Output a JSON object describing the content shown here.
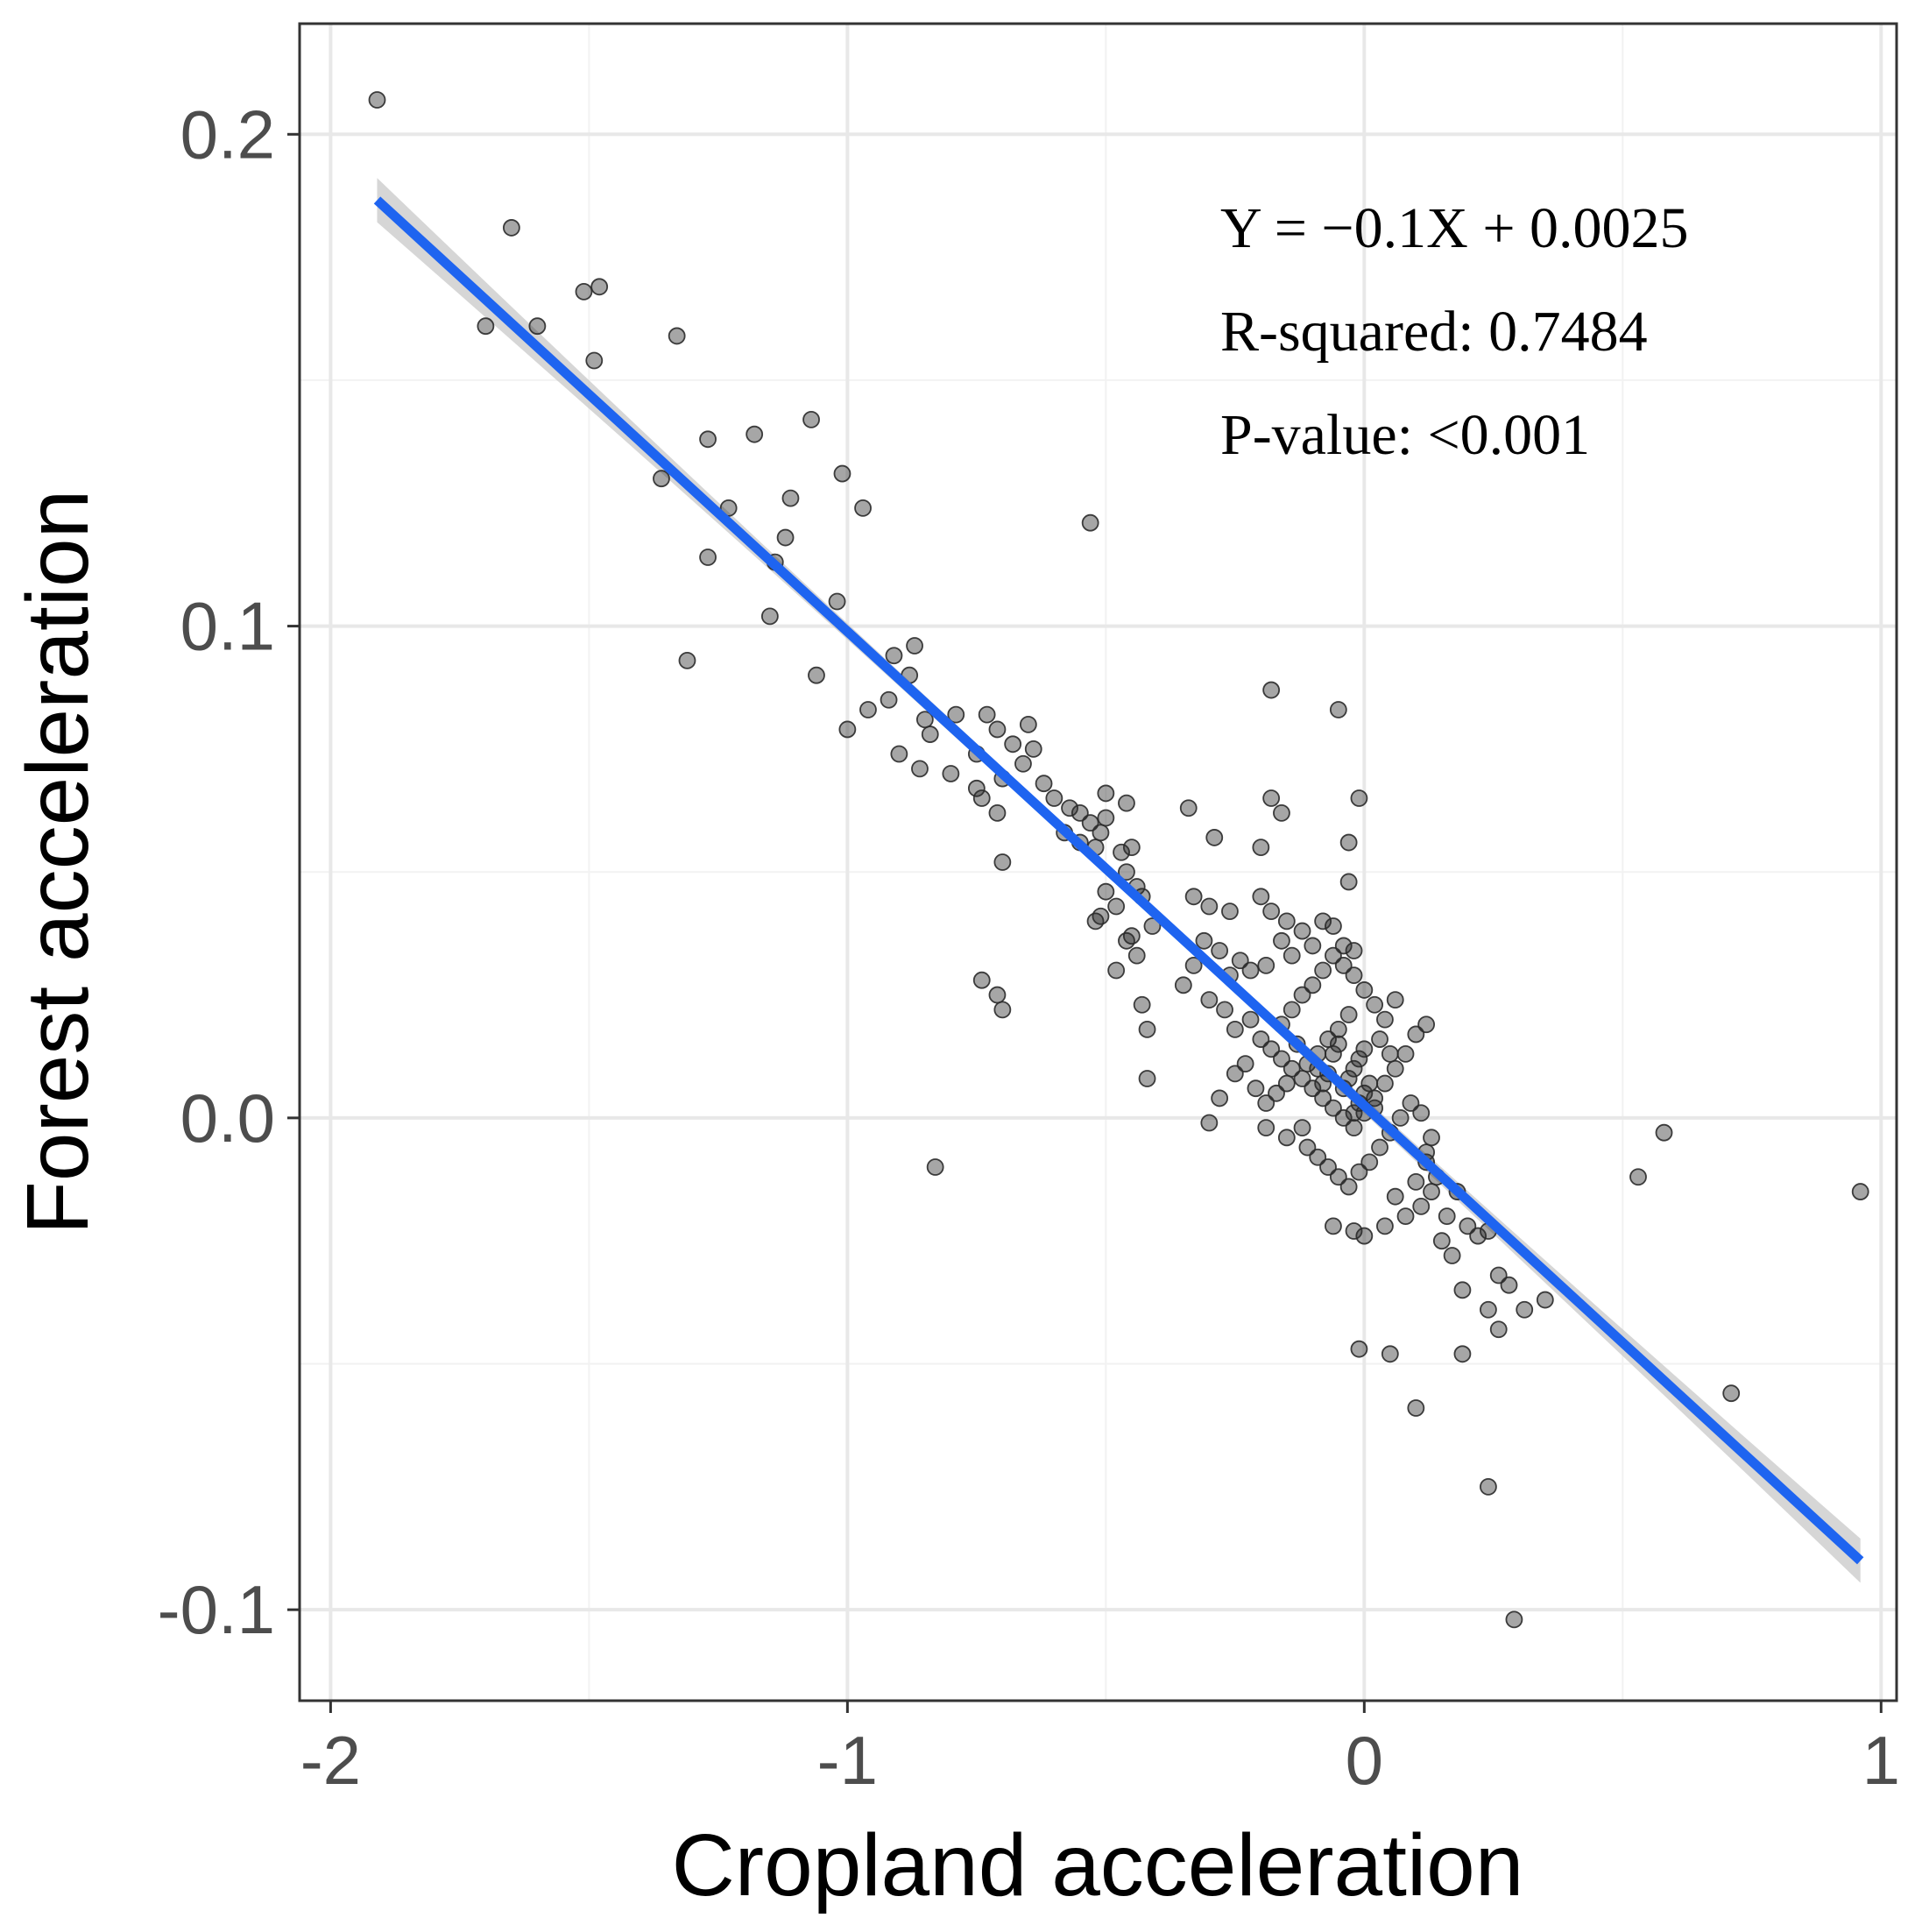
{
  "chart_data": {
    "type": "scatter",
    "title": "",
    "xlabel": "Cropland acceleration",
    "ylabel": "Forest acceleration",
    "xlim": [
      -2.06,
      1.03
    ],
    "ylim": [
      -0.1185,
      0.2225
    ],
    "x_ticks": [
      -2,
      -1,
      0,
      1
    ],
    "x_tick_labels": [
      "-2",
      "-1",
      "0",
      "1"
    ],
    "y_ticks": [
      -0.1,
      0.0,
      0.1,
      0.2
    ],
    "y_tick_labels": [
      "-0.1",
      "0.0",
      "0.1",
      "0.2"
    ],
    "grid": true,
    "fit": {
      "method": "linear",
      "slope": -0.0964,
      "intercept": 0.0025,
      "x_range": [
        -1.91,
        0.96
      ],
      "se_half_width_at_ends": 0.0045,
      "se_half_width_at_center": 0.0012,
      "color": "#1e64f0",
      "band_color": "#c8c8c8"
    },
    "annotations": [
      "Y = −0.1X + 0.0025",
      "R-squared: 0.7484",
      "P-value: <0.001"
    ],
    "point_color": "#2a2a2a",
    "points": [
      [
        -1.91,
        0.207
      ],
      [
        -1.65,
        0.181
      ],
      [
        -1.7,
        0.161
      ],
      [
        -1.6,
        0.161
      ],
      [
        -1.51,
        0.168
      ],
      [
        -1.48,
        0.169
      ],
      [
        -1.49,
        0.154
      ],
      [
        -1.33,
        0.159
      ],
      [
        -1.27,
        0.138
      ],
      [
        -1.18,
        0.139
      ],
      [
        -1.07,
        0.142
      ],
      [
        -1.01,
        0.131
      ],
      [
        -1.36,
        0.13
      ],
      [
        -1.23,
        0.124
      ],
      [
        -1.11,
        0.126
      ],
      [
        -0.97,
        0.124
      ],
      [
        -1.27,
        0.114
      ],
      [
        -1.12,
        0.118
      ],
      [
        -1.14,
        0.113
      ],
      [
        -1.15,
        0.102
      ],
      [
        -1.02,
        0.105
      ],
      [
        -1.31,
        0.093
      ],
      [
        -1.06,
        0.09
      ],
      [
        -0.53,
        0.121
      ],
      [
        -0.87,
        0.096
      ],
      [
        -0.91,
        0.094
      ],
      [
        -0.88,
        0.09
      ],
      [
        -0.92,
        0.085
      ],
      [
        -0.96,
        0.083
      ],
      [
        -1.0,
        0.079
      ],
      [
        -0.85,
        0.081
      ],
      [
        -0.84,
        0.078
      ],
      [
        -0.79,
        0.082
      ],
      [
        -0.9,
        0.074
      ],
      [
        -0.86,
        0.071
      ],
      [
        -0.8,
        0.07
      ],
      [
        -0.75,
        0.074
      ],
      [
        -0.73,
        0.082
      ],
      [
        -0.71,
        0.079
      ],
      [
        -0.68,
        0.076
      ],
      [
        -0.65,
        0.08
      ],
      [
        -0.7,
        0.069
      ],
      [
        -0.64,
        0.075
      ],
      [
        -0.66,
        0.072
      ],
      [
        -0.62,
        0.068
      ],
      [
        -0.6,
        0.065
      ],
      [
        -0.57,
        0.063
      ],
      [
        -0.55,
        0.062
      ],
      [
        -0.5,
        0.066
      ],
      [
        -0.53,
        0.06
      ],
      [
        -0.58,
        0.058
      ],
      [
        -0.55,
        0.056
      ],
      [
        -0.51,
        0.058
      ],
      [
        -0.46,
        0.064
      ],
      [
        -0.52,
        0.055
      ],
      [
        -0.5,
        0.061
      ],
      [
        -0.74,
        0.065
      ],
      [
        -0.75,
        0.067
      ],
      [
        -0.71,
        0.062
      ],
      [
        -0.7,
        0.052
      ],
      [
        -0.74,
        0.028
      ],
      [
        -0.71,
        0.025
      ],
      [
        -0.7,
        0.022
      ],
      [
        -0.83,
        -0.01
      ],
      [
        -0.47,
        0.054
      ],
      [
        -0.45,
        0.055
      ],
      [
        -0.46,
        0.05
      ],
      [
        -0.44,
        0.047
      ],
      [
        -0.43,
        0.045
      ],
      [
        -0.48,
        0.043
      ],
      [
        -0.5,
        0.046
      ],
      [
        -0.51,
        0.041
      ],
      [
        -0.52,
        0.04
      ],
      [
        -0.41,
        0.039
      ],
      [
        -0.45,
        0.037
      ],
      [
        -0.46,
        0.036
      ],
      [
        -0.44,
        0.033
      ],
      [
        -0.48,
        0.03
      ],
      [
        -0.43,
        0.023
      ],
      [
        -0.42,
        0.018
      ],
      [
        -0.42,
        0.008
      ],
      [
        -0.34,
        0.063
      ],
      [
        -0.29,
        0.057
      ],
      [
        -0.2,
        0.055
      ],
      [
        -0.18,
        0.065
      ],
      [
        -0.16,
        0.062
      ],
      [
        -0.01,
        0.065
      ],
      [
        -0.03,
        0.056
      ],
      [
        -0.03,
        0.048
      ],
      [
        -0.18,
        0.087
      ],
      [
        -0.05,
        0.083
      ],
      [
        -0.33,
        0.045
      ],
      [
        -0.3,
        0.043
      ],
      [
        -0.26,
        0.042
      ],
      [
        -0.2,
        0.045
      ],
      [
        -0.18,
        0.042
      ],
      [
        -0.15,
        0.04
      ],
      [
        -0.12,
        0.038
      ],
      [
        -0.08,
        0.04
      ],
      [
        -0.06,
        0.039
      ],
      [
        -0.04,
        0.035
      ],
      [
        -0.02,
        0.034
      ],
      [
        -0.1,
        0.035
      ],
      [
        -0.14,
        0.033
      ],
      [
        -0.16,
        0.036
      ],
      [
        -0.19,
        0.031
      ],
      [
        -0.22,
        0.03
      ],
      [
        -0.24,
        0.032
      ],
      [
        -0.26,
        0.029
      ],
      [
        -0.28,
        0.034
      ],
      [
        -0.31,
        0.036
      ],
      [
        -0.33,
        0.031
      ],
      [
        -0.35,
        0.027
      ],
      [
        -0.3,
        0.024
      ],
      [
        -0.27,
        0.022
      ],
      [
        -0.25,
        0.018
      ],
      [
        -0.22,
        0.02
      ],
      [
        -0.2,
        0.016
      ],
      [
        -0.18,
        0.014
      ],
      [
        -0.16,
        0.012
      ],
      [
        -0.14,
        0.01
      ],
      [
        -0.12,
        0.008
      ],
      [
        -0.1,
        0.006
      ],
      [
        -0.08,
        0.004
      ],
      [
        -0.06,
        0.002
      ],
      [
        -0.04,
        0.0
      ],
      [
        -0.02,
        -0.002
      ],
      [
        0.0,
        0.001
      ],
      [
        0.02,
        0.004
      ],
      [
        0.04,
        0.007
      ],
      [
        0.06,
        0.01
      ],
      [
        0.08,
        0.013
      ],
      [
        0.1,
        0.017
      ],
      [
        0.12,
        0.019
      ],
      [
        0.02,
        0.023
      ],
      [
        0.0,
        0.026
      ],
      [
        -0.02,
        0.029
      ],
      [
        -0.04,
        0.031
      ],
      [
        -0.06,
        0.033
      ],
      [
        -0.08,
        0.03
      ],
      [
        -0.1,
        0.027
      ],
      [
        -0.12,
        0.025
      ],
      [
        -0.14,
        0.022
      ],
      [
        -0.16,
        0.019
      ],
      [
        -0.03,
        0.021
      ],
      [
        -0.05,
        0.018
      ],
      [
        -0.07,
        0.016
      ],
      [
        -0.09,
        0.013
      ],
      [
        -0.11,
        0.011
      ],
      [
        -0.13,
        0.015
      ],
      [
        -0.15,
        0.007
      ],
      [
        -0.17,
        0.005
      ],
      [
        -0.19,
        0.003
      ],
      [
        -0.21,
        0.006
      ],
      [
        -0.23,
        0.011
      ],
      [
        -0.25,
        0.009
      ],
      [
        -0.28,
        0.004
      ],
      [
        -0.3,
        -0.001
      ],
      [
        -0.19,
        -0.002
      ],
      [
        -0.15,
        -0.004
      ],
      [
        -0.11,
        -0.006
      ],
      [
        -0.09,
        -0.008
      ],
      [
        -0.07,
        -0.01
      ],
      [
        -0.05,
        -0.012
      ],
      [
        -0.03,
        -0.014
      ],
      [
        -0.01,
        -0.011
      ],
      [
        0.01,
        -0.009
      ],
      [
        0.03,
        -0.006
      ],
      [
        0.05,
        -0.003
      ],
      [
        0.07,
        0.0
      ],
      [
        0.09,
        0.003
      ],
      [
        0.11,
        0.001
      ],
      [
        0.13,
        -0.004
      ],
      [
        0.12,
        -0.007
      ],
      [
        -0.02,
        0.01
      ],
      [
        -0.01,
        0.012
      ],
      [
        0.0,
        0.014
      ],
      [
        -0.03,
        0.008
      ],
      [
        -0.04,
        0.006
      ],
      [
        0.01,
        0.007
      ],
      [
        0.0,
        0.005
      ],
      [
        -0.01,
        0.003
      ],
      [
        -0.02,
        0.001
      ],
      [
        0.02,
        0.002
      ],
      [
        -0.06,
        0.013
      ],
      [
        -0.07,
        0.009
      ],
      [
        -0.08,
        0.007
      ],
      [
        -0.09,
        0.01
      ],
      [
        -0.05,
        0.015
      ],
      [
        0.04,
        0.02
      ],
      [
        0.06,
        0.024
      ],
      [
        0.03,
        0.016
      ],
      [
        0.05,
        0.013
      ],
      [
        -0.12,
        -0.002
      ],
      [
        0.12,
        -0.009
      ],
      [
        0.14,
        -0.012
      ],
      [
        0.18,
        -0.015
      ],
      [
        0.16,
        -0.02
      ],
      [
        0.2,
        -0.022
      ],
      [
        0.22,
        -0.024
      ],
      [
        0.1,
        -0.013
      ],
      [
        0.06,
        -0.016
      ],
      [
        0.08,
        -0.02
      ],
      [
        0.15,
        -0.025
      ],
      [
        0.24,
        -0.023
      ],
      [
        0.26,
        -0.032
      ],
      [
        0.28,
        -0.034
      ],
      [
        0.31,
        -0.039
      ],
      [
        0.35,
        -0.037
      ],
      [
        0.24,
        -0.039
      ],
      [
        0.19,
        -0.035
      ],
      [
        0.17,
        -0.028
      ],
      [
        0.13,
        -0.015
      ],
      [
        0.11,
        -0.018
      ],
      [
        0.04,
        -0.022
      ],
      [
        -0.02,
        -0.023
      ],
      [
        -0.06,
        -0.022
      ],
      [
        0.0,
        -0.024
      ],
      [
        -0.01,
        -0.047
      ],
      [
        0.05,
        -0.048
      ],
      [
        0.1,
        -0.059
      ],
      [
        0.26,
        -0.043
      ],
      [
        0.19,
        -0.048
      ],
      [
        0.24,
        -0.075
      ],
      [
        0.29,
        -0.102
      ],
      [
        0.53,
        -0.012
      ],
      [
        0.58,
        -0.003
      ],
      [
        0.71,
        -0.056
      ],
      [
        0.96,
        -0.015
      ]
    ]
  }
}
